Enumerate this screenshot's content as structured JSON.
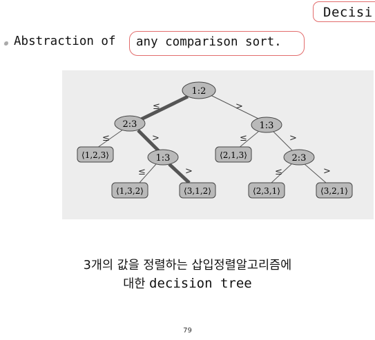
{
  "slide": {
    "title_fragment": "Decisi",
    "bullet_prefix": "Abstraction of",
    "bullet_highlight": "any comparison sort.",
    "caption_line1": "3개의 값을 정렬하는 삽입정렬알고리즘에",
    "caption_line2_ko": "대한",
    "caption_line2_en": "decision tree",
    "page_number": "79"
  },
  "tree": {
    "nodes": {
      "root": "1:2",
      "left": "2:3",
      "right": "1:3",
      "left_right": "1:3",
      "right_right": "2:3"
    },
    "leaves": {
      "leaf_123": "⟨1,2,3⟩",
      "leaf_132": "⟨1,3,2⟩",
      "leaf_312": "⟨3,1,2⟩",
      "leaf_213": "⟨2,1,3⟩",
      "leaf_231": "⟨2,3,1⟩",
      "leaf_321": "⟨3,2,1⟩"
    },
    "edge_labels": {
      "le": "≤",
      "gt": ">"
    },
    "colors": {
      "node_fill": "#b9b9b9",
      "background": "#ededed",
      "highlight_path": "#555555",
      "annotation": "#e26b6b"
    }
  }
}
